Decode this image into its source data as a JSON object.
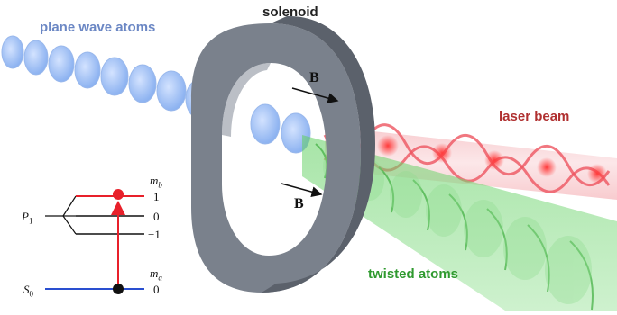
{
  "labels": {
    "solenoid": "solenoid",
    "plane_wave": "plane wave atoms",
    "laser": "laser beam",
    "twisted": "twisted atoms",
    "field_top": "B",
    "field_bottom": "B"
  },
  "level_diagram": {
    "upper_state": "P",
    "upper_state_sub": "1",
    "lower_state": "S",
    "lower_state_sub": "0",
    "mb_symbol": "m",
    "mb_sub": "b",
    "ma_symbol": "m",
    "ma_sub": "a",
    "levels_upper": [
      "1",
      "0",
      "−1"
    ],
    "level_lower": "0"
  },
  "colors": {
    "plane_wave": "#6b87c4",
    "laser": "#e8404a",
    "twisted": "#2f9a2f",
    "solenoid": "#6d7480",
    "transition": "#e8202a",
    "ground_level": "#2a4fd0"
  }
}
